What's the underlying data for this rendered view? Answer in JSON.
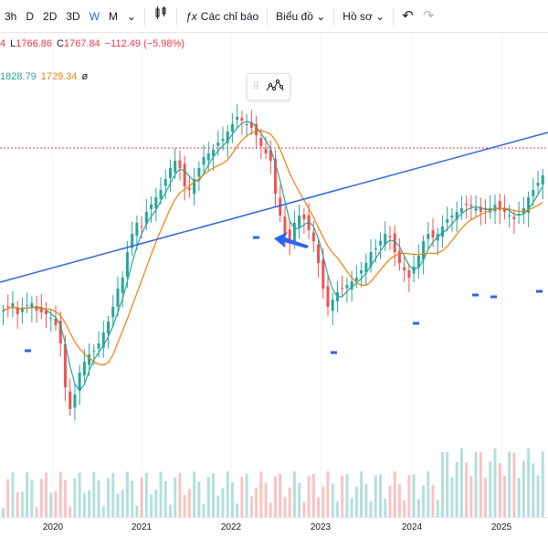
{
  "toolbar": {
    "intervals": [
      "3h",
      "D",
      "2D",
      "3D",
      "W",
      "M"
    ],
    "active_interval": "W",
    "indicators_label": "Các chỉ báo",
    "chart_label": "Biểu đồ",
    "profile_label": "Hồ sơ"
  },
  "legend": {
    "ohlc": [
      {
        "prefix": "",
        "value": "4",
        "color": "#f23645"
      },
      {
        "prefix": "L",
        "value": "1766.86",
        "color": "#f23645"
      },
      {
        "prefix": "C",
        "value": "1767.84",
        "color": "#f23645"
      },
      {
        "prefix": "",
        "value": "−112.49 (−5.98%)",
        "color": "#f23645"
      }
    ],
    "ma": [
      {
        "value": "1828.79",
        "color": "#26a69a"
      },
      {
        "value": "1729.34",
        "color": "#f57c00"
      },
      {
        "value": "ø",
        "color": "#131722"
      }
    ]
  },
  "colors": {
    "up": "#26a69a",
    "down": "#ef5350",
    "ma_fast": "#26a69a",
    "ma_slow": "#f57c00",
    "trendline": "#2962ff",
    "dotted_level": "#f23645",
    "accent": "#2962ff"
  },
  "chart_data": {
    "type": "candlestick",
    "x_ticks": [
      "2020",
      "2021",
      "2022",
      "2023",
      "2024",
      "2025"
    ],
    "y_range_approx": [
      900,
      2000
    ],
    "series": {
      "close": [
        990,
        1000,
        1010,
        980,
        995,
        1005,
        1010,
        990,
        985,
        980,
        970,
        950,
        900,
        780,
        720,
        760,
        820,
        850,
        870,
        880,
        900,
        930,
        960,
        1000,
        1050,
        1080,
        1150,
        1200,
        1230,
        1220,
        1260,
        1280,
        1300,
        1320,
        1350,
        1380,
        1400,
        1380,
        1330,
        1320,
        1350,
        1380,
        1410,
        1420,
        1430,
        1450,
        1460,
        1480,
        1500,
        1520,
        1510,
        1500,
        1490,
        1470,
        1440,
        1420,
        1400,
        1310,
        1250,
        1200,
        1180,
        1230,
        1250,
        1240,
        1210,
        1180,
        1120,
        1050,
        1000,
        1020,
        1040,
        1050,
        1060,
        1070,
        1080,
        1100,
        1120,
        1150,
        1160,
        1180,
        1200,
        1190,
        1150,
        1120,
        1100,
        1080,
        1110,
        1140,
        1180,
        1200,
        1190,
        1200,
        1220,
        1240,
        1250,
        1260,
        1270,
        1280,
        1275,
        1270,
        1260,
        1265,
        1270,
        1280,
        1265,
        1260,
        1250,
        1240,
        1255,
        1270,
        1300,
        1320,
        1340,
        1360
      ],
      "ma_fast_label": "1828.79",
      "ma_slow_label": "1729.34"
    }
  }
}
